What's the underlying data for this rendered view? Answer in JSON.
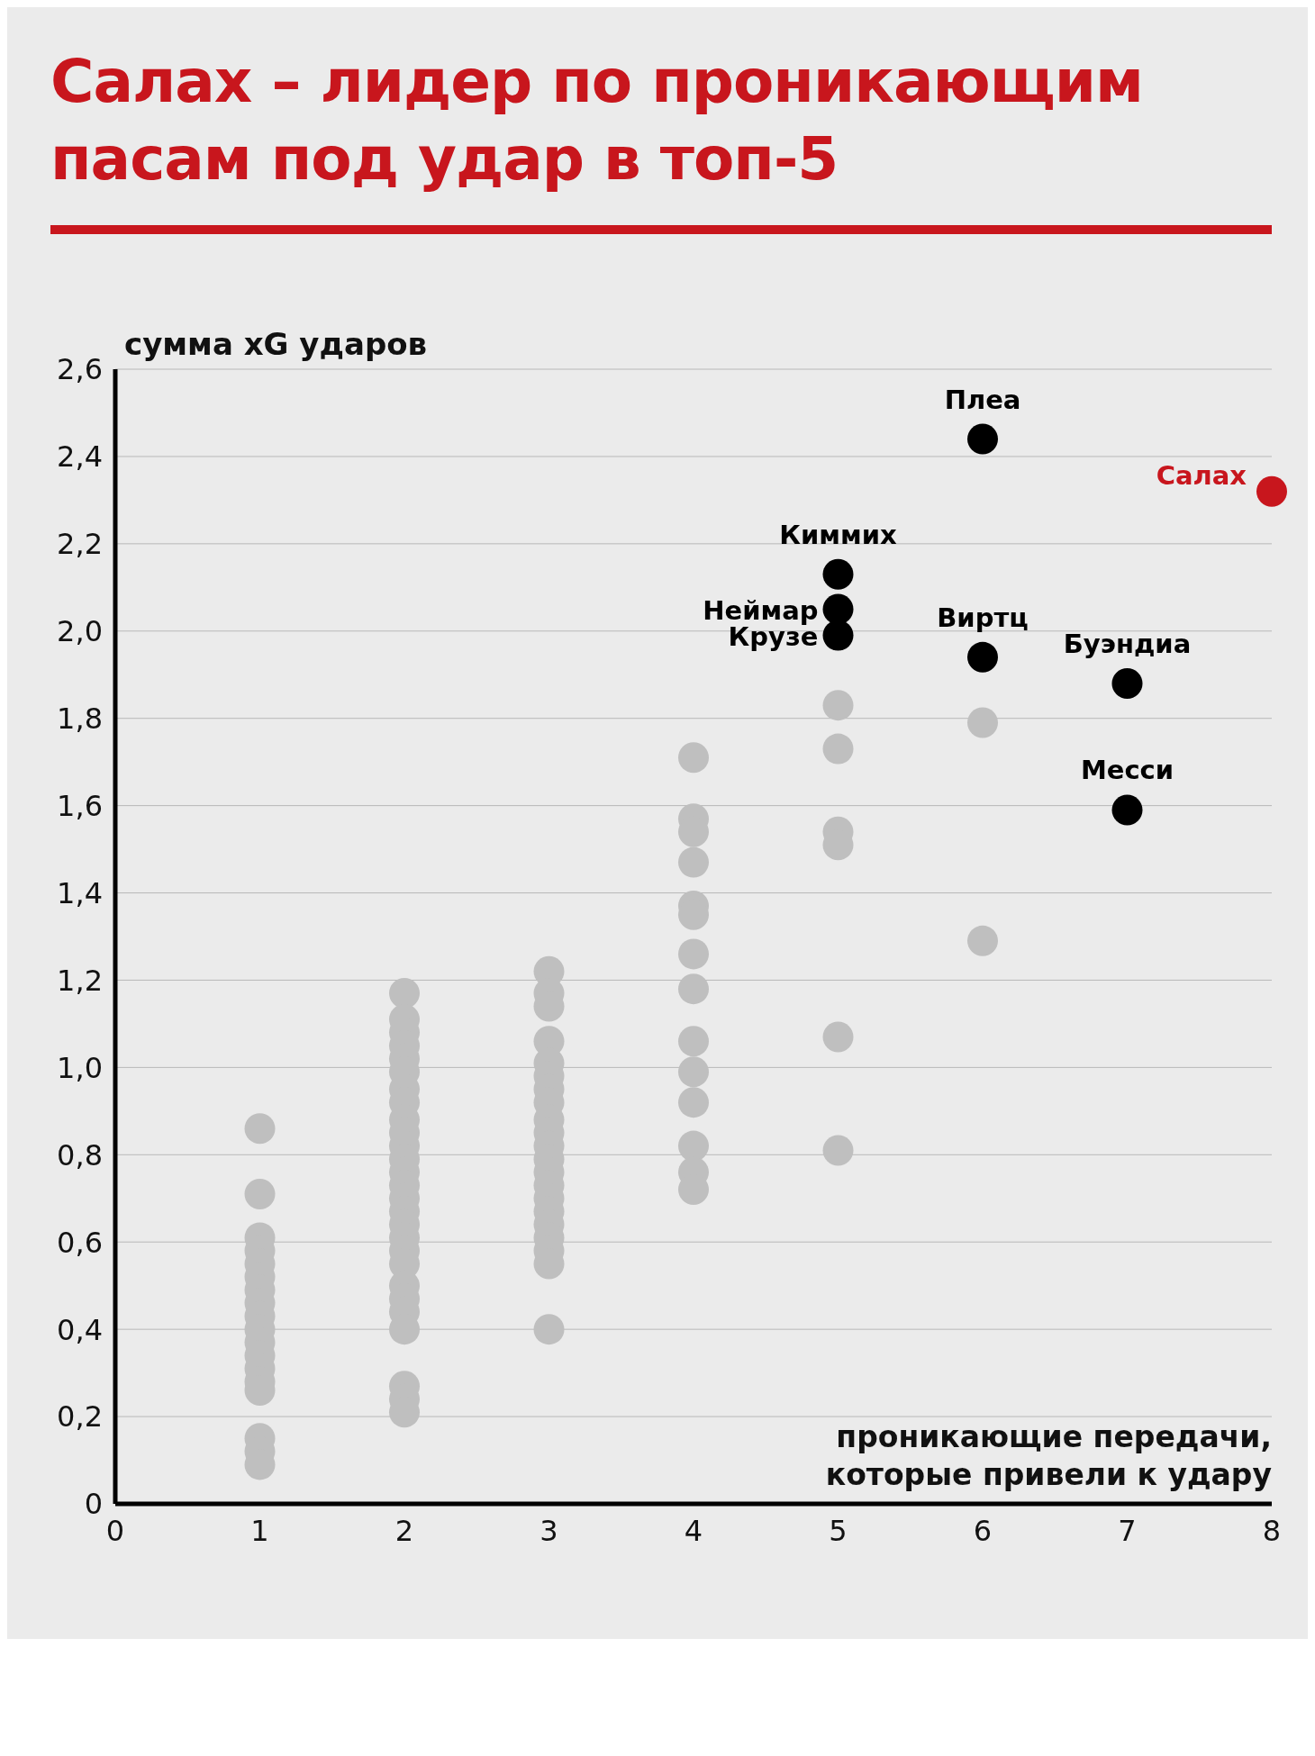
{
  "chart_data": {
    "type": "scatter",
    "title": "Салах – лидер по проникающим пасам под удар в топ-5",
    "xlabel": "проникающие передачи,\nкоторые привели к удару",
    "ylabel": "сумма xG ударов",
    "xlim": [
      0,
      8
    ],
    "xticks": [
      0,
      1,
      2,
      3,
      4,
      5,
      6,
      7,
      8
    ],
    "ylim": [
      0,
      2.6
    ],
    "yticks": [
      {
        "value": 0,
        "label": "0"
      },
      {
        "value": 0.2,
        "label": "0,2"
      },
      {
        "value": 0.4,
        "label": "0,4"
      },
      {
        "value": 0.6,
        "label": "0,6"
      },
      {
        "value": 0.8,
        "label": "0,8"
      },
      {
        "value": 1.0,
        "label": "1,0"
      },
      {
        "value": 1.2,
        "label": "1,2"
      },
      {
        "value": 1.4,
        "label": "1,4"
      },
      {
        "value": 1.6,
        "label": "1,6"
      },
      {
        "value": 1.8,
        "label": "1,8"
      },
      {
        "value": 2.0,
        "label": "2,0"
      },
      {
        "value": 2.2,
        "label": "2,2"
      },
      {
        "value": 2.4,
        "label": "2,4"
      },
      {
        "value": 2.6,
        "label": "2,6"
      }
    ],
    "grid": "y",
    "legend": false,
    "marker": "circle",
    "series": [
      {
        "color": "#bfbfbf",
        "x": [
          1,
          1,
          1,
          1,
          1,
          1,
          1,
          1,
          1,
          1,
          1,
          1,
          1,
          1,
          1,
          1,
          1,
          1,
          2,
          2,
          2,
          2,
          2,
          2,
          2,
          2,
          2,
          2,
          2,
          2,
          2,
          2,
          2,
          2,
          2,
          2,
          2,
          2,
          2,
          2,
          2,
          2,
          2,
          2,
          2,
          3,
          3,
          3,
          3,
          3,
          3,
          3,
          3,
          3,
          3,
          3,
          3,
          3,
          3,
          3,
          3,
          3,
          3,
          3,
          3,
          3,
          4,
          4,
          4,
          4,
          4,
          4,
          4,
          4,
          4,
          4,
          4,
          4,
          4,
          4,
          5,
          5,
          5,
          5,
          5,
          5,
          6,
          6
        ],
        "values": [
          0.86,
          0.71,
          0.61,
          0.58,
          0.55,
          0.52,
          0.49,
          0.46,
          0.43,
          0.4,
          0.37,
          0.34,
          0.31,
          0.28,
          0.26,
          0.15,
          0.12,
          0.09,
          1.17,
          1.11,
          1.08,
          1.05,
          1.02,
          0.99,
          0.95,
          0.92,
          0.88,
          0.85,
          0.82,
          0.79,
          0.76,
          0.73,
          0.7,
          0.67,
          0.64,
          0.61,
          0.58,
          0.55,
          0.5,
          0.47,
          0.44,
          0.4,
          0.27,
          0.24,
          0.21,
          1.22,
          1.17,
          1.14,
          1.06,
          1.01,
          0.98,
          0.95,
          0.92,
          0.88,
          0.85,
          0.82,
          0.79,
          0.76,
          0.73,
          0.7,
          0.67,
          0.64,
          0.61,
          0.58,
          0.55,
          0.4,
          1.71,
          1.57,
          1.54,
          1.47,
          1.37,
          1.35,
          1.26,
          1.18,
          1.06,
          0.99,
          0.92,
          0.82,
          0.76,
          0.72,
          1.83,
          1.73,
          1.54,
          1.51,
          1.07,
          0.81,
          1.79,
          1.29
        ]
      },
      {
        "name": "Плеа",
        "color": "#000000",
        "x": [
          6
        ],
        "values": [
          2.44
        ]
      },
      {
        "name": "Киммих",
        "color": "#000000",
        "x": [
          5
        ],
        "values": [
          2.13
        ]
      },
      {
        "name": "Неймар",
        "color": "#000000",
        "x": [
          5
        ],
        "values": [
          2.05
        ]
      },
      {
        "name": "Крузе",
        "color": "#000000",
        "x": [
          5
        ],
        "values": [
          1.99
        ]
      },
      {
        "name": "Виртц",
        "color": "#000000",
        "x": [
          6
        ],
        "values": [
          1.94
        ]
      },
      {
        "name": "Буэндиа",
        "color": "#000000",
        "x": [
          7
        ],
        "values": [
          1.88
        ]
      },
      {
        "name": "Месси",
        "color": "#000000",
        "x": [
          7
        ],
        "values": [
          1.59
        ]
      },
      {
        "name": "Салах",
        "color": "#c8161d",
        "x": [
          8
        ],
        "values": [
          2.32
        ]
      }
    ]
  }
}
